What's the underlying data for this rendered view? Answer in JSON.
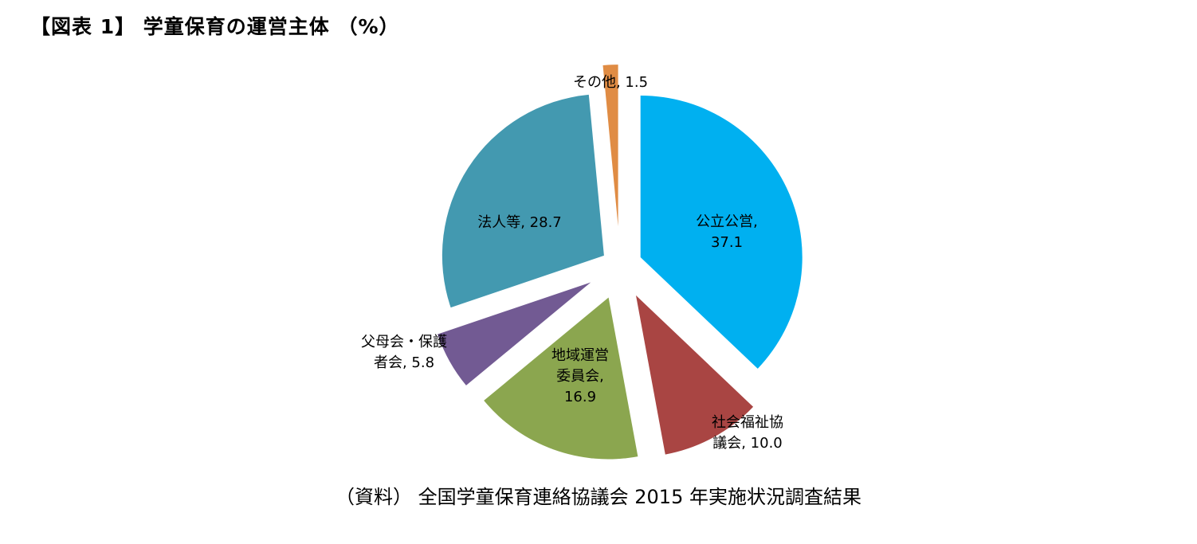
{
  "title": "【図表 1】 学童保育の運営主体 （%）",
  "source": "（資料） 全国学童保育連絡協議会 2015 年実施状況調査結果",
  "chart_data": {
    "type": "pie",
    "title": "【図表 1】 学童保育の運営主体 （%）",
    "exploded": true,
    "slices": [
      {
        "label": "公立公営",
        "value": 37.1,
        "color": "#00B0F0",
        "label_lines": [
          "公立公営,",
          "37.1"
        ]
      },
      {
        "label": "社会福祉協議会",
        "value": 10.0,
        "color": "#A94543",
        "label_lines": [
          "社会福祉協",
          "議会, 10.0"
        ]
      },
      {
        "label": "地域運営委員会",
        "value": 16.9,
        "color": "#8BA64F",
        "label_lines": [
          "地域運営",
          "委員会,",
          "16.9"
        ]
      },
      {
        "label": "父母会・保護者会",
        "value": 5.8,
        "color": "#725A93",
        "label_lines": [
          "父母会・保護",
          "者会, 5.8"
        ]
      },
      {
        "label": "法人等",
        "value": 28.7,
        "color": "#4399B0",
        "label_lines": [
          "法人等, 28.7"
        ]
      },
      {
        "label": "その他",
        "value": 1.5,
        "color": "#E08C44",
        "label_lines": [
          "その他, 1.5"
        ]
      }
    ],
    "legend": "none"
  }
}
